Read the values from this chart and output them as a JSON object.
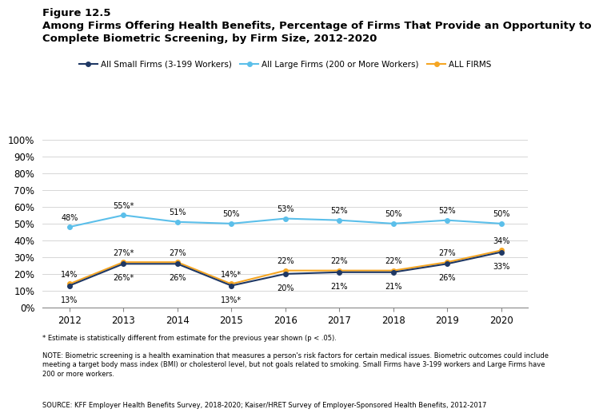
{
  "years": [
    2012,
    2013,
    2014,
    2015,
    2016,
    2017,
    2018,
    2019,
    2020
  ],
  "small_firms": [
    13,
    26,
    26,
    13,
    20,
    21,
    21,
    26,
    33
  ],
  "large_firms": [
    48,
    55,
    51,
    50,
    53,
    52,
    50,
    52,
    50
  ],
  "all_firms": [
    14,
    27,
    27,
    14,
    22,
    22,
    22,
    27,
    34
  ],
  "small_labels": [
    "13%",
    "26%*",
    "26%",
    "13%*",
    "20%",
    "21%",
    "21%",
    "26%",
    "33%"
  ],
  "large_labels": [
    "48%",
    "55%*",
    "51%",
    "50%",
    "53%",
    "52%",
    "50%",
    "52%",
    "50%"
  ],
  "all_labels": [
    "14%",
    "27%*",
    "27%",
    "14%*",
    "22%",
    "22%",
    "22%",
    "27%",
    "34%"
  ],
  "small_color": "#1f3864",
  "large_color": "#5bbfea",
  "all_color": "#f5a623",
  "title_fig": "Figure 12.5",
  "title_main": "Among Firms Offering Health Benefits, Percentage of Firms That Provide an Opportunity to\nComplete Biometric Screening, by Firm Size, 2012-2020",
  "legend_small": "All Small Firms (3-199 Workers)",
  "legend_large": "All Large Firms (200 or More Workers)",
  "legend_all": "ALL FIRMS",
  "ylim": [
    0,
    110
  ],
  "yticks": [
    0,
    10,
    20,
    30,
    40,
    50,
    60,
    70,
    80,
    90,
    100
  ],
  "ytick_labels": [
    "0%",
    "10%",
    "20%",
    "30%",
    "40%",
    "50%",
    "60%",
    "70%",
    "80%",
    "90%",
    "100%"
  ],
  "footnote1": "* Estimate is statistically different from estimate for the previous year shown (p < .05).",
  "footnote2": "NOTE: Biometric screening is a health examination that measures a person's risk factors for certain medical issues. Biometric outcomes could include\nmeeting a target body mass index (BMI) or cholesterol level, but not goals related to smoking. Small Firms have 3-199 workers and Large Firms have\n200 or more workers.",
  "footnote3": "SOURCE: KFF Employer Health Benefits Survey, 2018-2020; Kaiser/HRET Survey of Employer-Sponsored Health Benefits, 2012-2017"
}
